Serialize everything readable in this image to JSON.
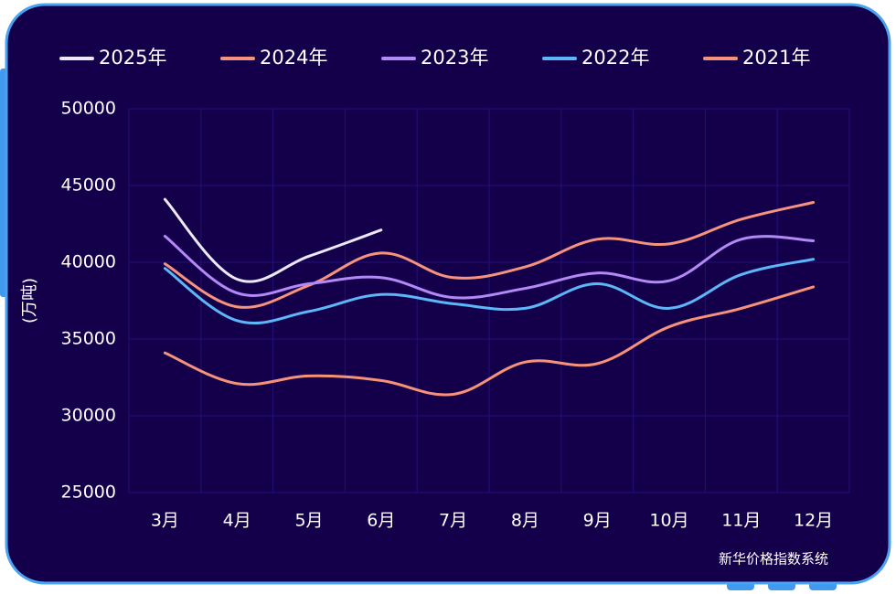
{
  "chart_data": {
    "type": "line",
    "y_label": "(万吨)",
    "watermark": "新华价格指数系统",
    "categories": [
      "3月",
      "4月",
      "5月",
      "6月",
      "7月",
      "8月",
      "9月",
      "10月",
      "11月",
      "12月"
    ],
    "series": [
      {
        "name": "2025年",
        "color": "#ebe8f7",
        "values": [
          44100,
          38900,
          40400,
          42100,
          null,
          null,
          null,
          null,
          null,
          null
        ]
      },
      {
        "name": "2024年",
        "color": "#f5937f",
        "values": [
          39900,
          37100,
          38500,
          40600,
          39000,
          39700,
          41500,
          41200,
          42800,
          43900
        ]
      },
      {
        "name": "2023年",
        "color": "#b388f7",
        "values": [
          41700,
          38000,
          38600,
          39000,
          37700,
          38300,
          39300,
          38800,
          41500,
          41400
        ]
      },
      {
        "name": "2022年",
        "color": "#5cb6f7",
        "values": [
          39600,
          36200,
          36800,
          37900,
          37300,
          37000,
          38600,
          37000,
          39200,
          40200
        ]
      },
      {
        "name": "2021年",
        "color": "#f7927a",
        "values": [
          34100,
          32100,
          32600,
          32300,
          31400,
          33500,
          33400,
          35800,
          37000,
          38400
        ]
      }
    ],
    "ylim": [
      25000,
      50000
    ],
    "yticks": [
      25000,
      30000,
      35000,
      40000,
      45000,
      50000
    ],
    "grid": true
  }
}
